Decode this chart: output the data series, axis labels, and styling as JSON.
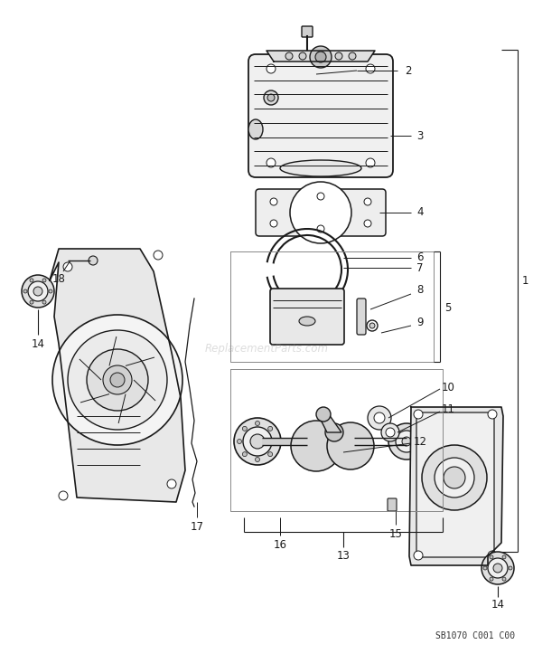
{
  "bg_color": "#ffffff",
  "line_color": "#1a1a1a",
  "watermark": "ReplacementParts.com",
  "part_code": "SB1070 C001 C00",
  "figsize": [
    5.9,
    7.23
  ],
  "dpi": 100
}
